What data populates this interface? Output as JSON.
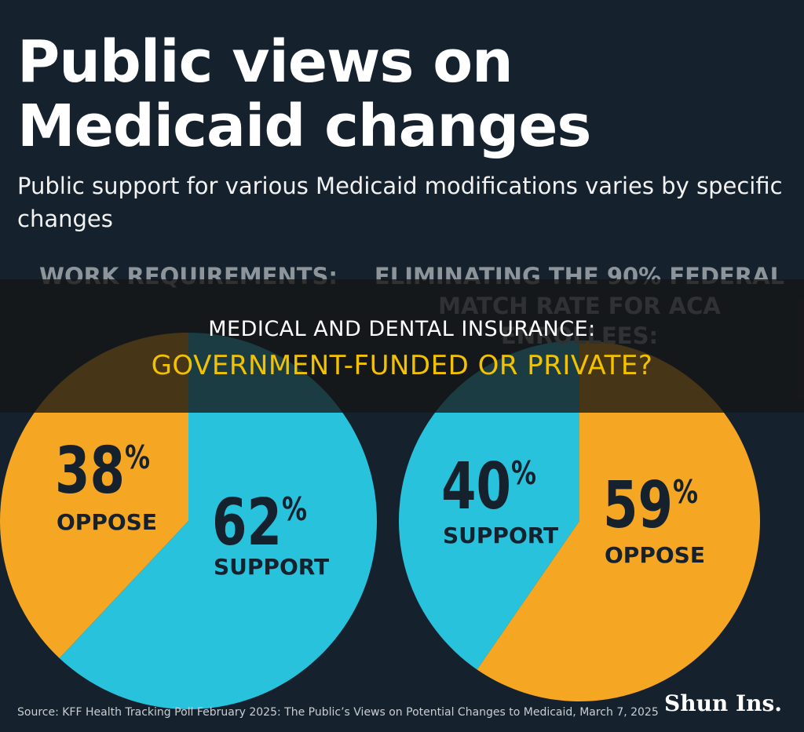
{
  "header": {
    "title": "Public views on Medicaid changes",
    "subtitle": "Public support for various Medicaid modifications varies by specific changes"
  },
  "overlay": {
    "line1": "MEDICAL AND DENTAL INSURANCE:",
    "line2": "GOVERNMENT-FUNDED OR PRIVATE?"
  },
  "footer": {
    "source": "Source: KFF Health Tracking Poll February 2025: The Public’s Views on Potential Changes to Medicaid, March 7, 2025",
    "brand": "Shun Ins."
  },
  "colors": {
    "oppose": "#f5a623",
    "support": "#29c2dd",
    "background": "#15212c"
  },
  "chart_data": [
    {
      "type": "pie",
      "title": "WORK REQUIREMENTS:",
      "slices": [
        {
          "label": "OPPOSE",
          "value": 38,
          "display": "38%",
          "color": "#f5a623"
        },
        {
          "label": "SUPPORT",
          "value": 62,
          "display": "62%",
          "color": "#29c2dd"
        }
      ]
    },
    {
      "type": "pie",
      "title": "ELIMINATING THE 90% FEDERAL MATCH RATE FOR ACA ENROLLEES:",
      "slices": [
        {
          "label": "SUPPORT",
          "value": 40,
          "display": "40%",
          "color": "#29c2dd"
        },
        {
          "label": "OPPOSE",
          "value": 59,
          "display": "59%",
          "color": "#f5a623"
        }
      ]
    }
  ]
}
